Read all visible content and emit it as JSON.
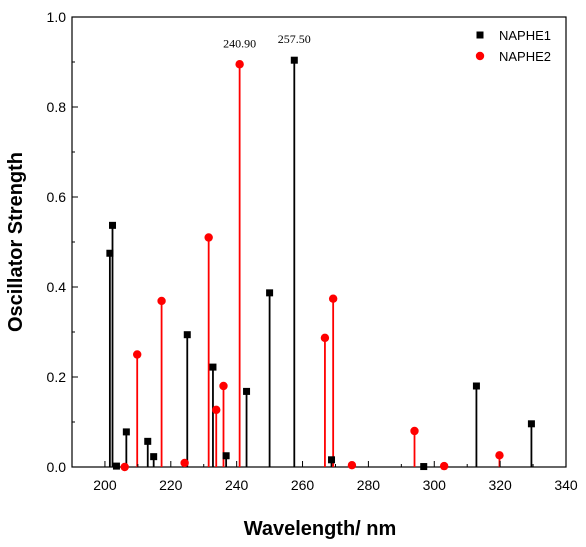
{
  "chart_data": {
    "type": "scatter",
    "style": "stick spectrum (vertical drop lines from each point to y = 0)",
    "xlabel": "Wavelength/ nm",
    "ylabel": "Oscillator Strength",
    "xlim": [
      190,
      340
    ],
    "ylim": [
      0,
      1.0
    ],
    "xticks": [
      200,
      220,
      240,
      260,
      280,
      300,
      320,
      340
    ],
    "yticks": [
      0.0,
      0.2,
      0.4,
      0.6,
      0.8,
      1.0
    ],
    "yticks_labels": [
      "0.0",
      "0.2",
      "0.4",
      "0.6",
      "0.8",
      "1.0"
    ],
    "grid": false,
    "legend_position": "top-right",
    "series": [
      {
        "name": "NAPHE1",
        "color": "#000000",
        "marker": "square",
        "x": [
          201.5,
          202.3,
          203.5,
          206.5,
          213.0,
          214.8,
          225.0,
          232.8,
          236.8,
          243.0,
          250.0,
          257.5,
          268.8,
          296.8,
          312.8,
          329.5
        ],
        "y": [
          0.475,
          0.537,
          0.002,
          0.078,
          0.057,
          0.023,
          0.294,
          0.222,
          0.025,
          0.168,
          0.387,
          0.904,
          0.016,
          0.001,
          0.18,
          0.096
        ]
      },
      {
        "name": "NAPHE2",
        "color": "#ff0000",
        "marker": "circle",
        "x": [
          206.0,
          209.8,
          217.2,
          224.2,
          231.5,
          233.8,
          236.0,
          240.9,
          266.8,
          269.3,
          275.0,
          294.0,
          303.0,
          319.8
        ],
        "y": [
          0.0,
          0.25,
          0.369,
          0.009,
          0.51,
          0.127,
          0.18,
          0.895,
          0.287,
          0.374,
          0.004,
          0.08,
          0.002,
          0.026
        ]
      }
    ],
    "annotations": [
      {
        "text": "240.90",
        "x": 240.9,
        "y": 0.895
      },
      {
        "text": "257.50",
        "x": 257.5,
        "y": 0.904
      }
    ]
  }
}
